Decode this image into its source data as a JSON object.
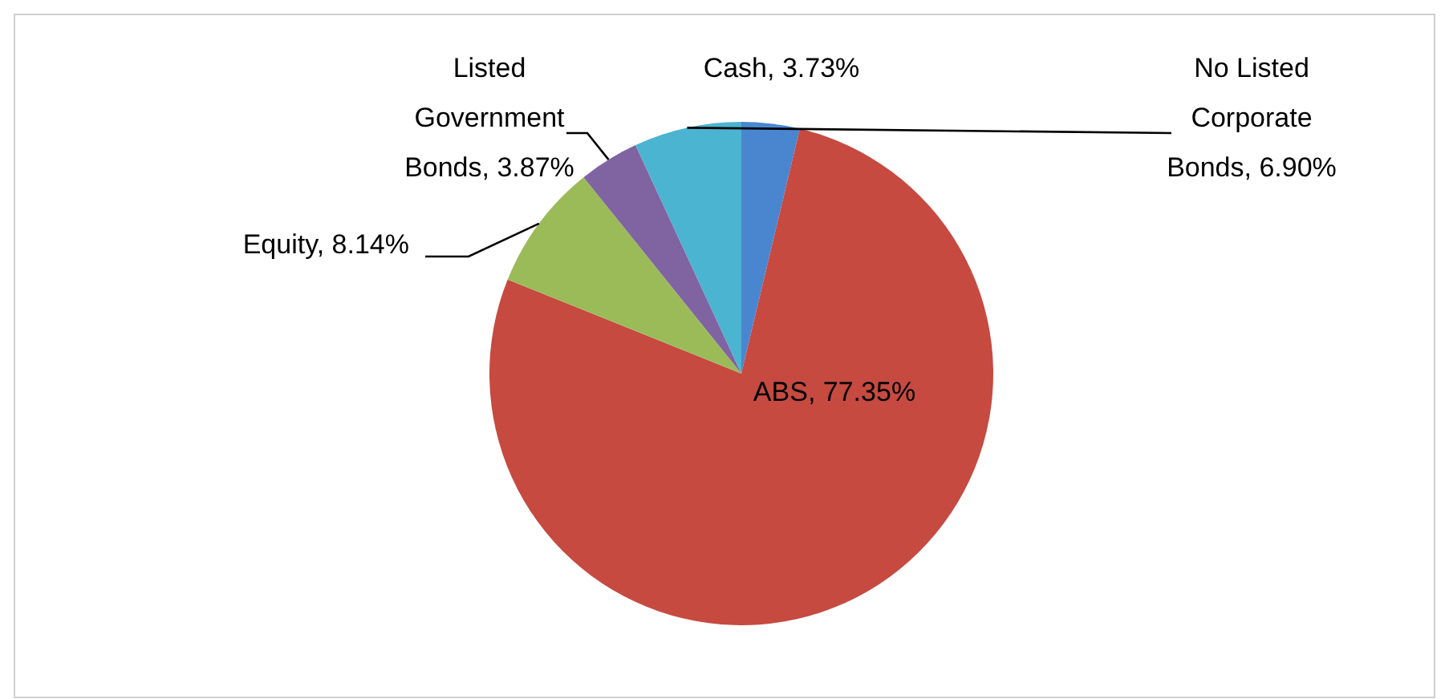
{
  "chart_data": {
    "type": "pie",
    "categories": [
      "Cash",
      "ABS",
      "Equity",
      "Listed Government Bonds",
      "No Listed Corporate Bonds"
    ],
    "values": [
      3.73,
      77.35,
      8.14,
      3.87,
      6.9
    ],
    "value_labels": [
      ", 3.73%",
      ", 77.35%",
      ", 8.14%",
      ", 3.87%",
      ", 6.90%"
    ],
    "colors": [
      "#4a86d0",
      "#c64a40",
      "#9bbb59",
      "#8064a2",
      "#4bb4d0"
    ]
  }
}
